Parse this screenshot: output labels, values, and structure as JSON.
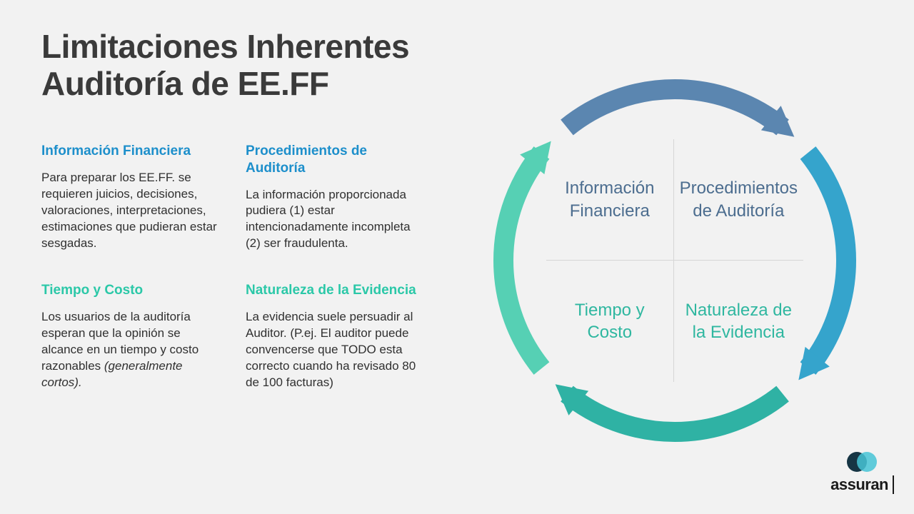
{
  "title_line1": "Limitaciones Inherentes",
  "title_line2": "Auditoría de EE.FF",
  "colors": {
    "heading_blue": "#1d8fcb",
    "heading_teal": "#2bc8a8",
    "text_dark": "#3a3a3a",
    "quad_blue": "#4c6d8f",
    "quad_teal": "#2fb7a0",
    "arc_top": "#5b86b0",
    "arc_right": "#35a4cc",
    "arc_bottom": "#2fb2a4",
    "arc_left": "#56d0b4",
    "logo_dark": "#0a2a3a",
    "logo_light": "#47c4d6",
    "grid_line": "#d6d6d6",
    "bg": "#f2f2f2"
  },
  "blocks": [
    {
      "heading": "Información Financiera",
      "heading_color_key": "heading_blue",
      "body": "Para preparar los EE.FF. se requieren juicios, decisiones, valoraciones, interpretaciones, estimaciones que pudieran estar sesgadas."
    },
    {
      "heading": "Procedimientos de Auditoría",
      "heading_color_key": "heading_blue",
      "body": "La información proporcionada pudiera (1) estar intencionadamente incompleta (2) ser fraudulenta."
    },
    {
      "heading": "Tiempo y Costo",
      "heading_color_key": "heading_teal",
      "body": "Los usuarios de la auditoría esperan que la opinión se alcance en un tiempo y costo razonables (generalmente cortos).",
      "italic_tail": "(generalmente cortos)."
    },
    {
      "heading": "Naturaleza de la Evidencia",
      "heading_color_key": "heading_teal",
      "body": "La evidencia suele persuadir al Auditor. (P.ej. El auditor puede convencerse que TODO esta correcto cuando ha revisado 80 de 100  facturas)"
    }
  ],
  "cycle": {
    "type": "cycle-diagram",
    "quadrants": [
      {
        "label": "Información Financiera",
        "color_key": "quad_blue",
        "pos": "tl"
      },
      {
        "label": "Procedimientos de Auditoría",
        "color_key": "quad_blue",
        "pos": "tr"
      },
      {
        "label": "Tiempo y Costo",
        "color_key": "quad_teal",
        "pos": "bl"
      },
      {
        "label": "Naturaleza de la Evidencia",
        "color_key": "quad_teal",
        "pos": "br"
      }
    ],
    "arcs": [
      {
        "color_key": "arc_top"
      },
      {
        "color_key": "arc_right"
      },
      {
        "color_key": "arc_bottom"
      },
      {
        "color_key": "arc_left"
      }
    ],
    "stroke_width": 28,
    "radius": 240
  },
  "logo": {
    "text": "assuran",
    "circle1_color_key": "logo_dark",
    "circle2_color_key": "logo_light"
  }
}
